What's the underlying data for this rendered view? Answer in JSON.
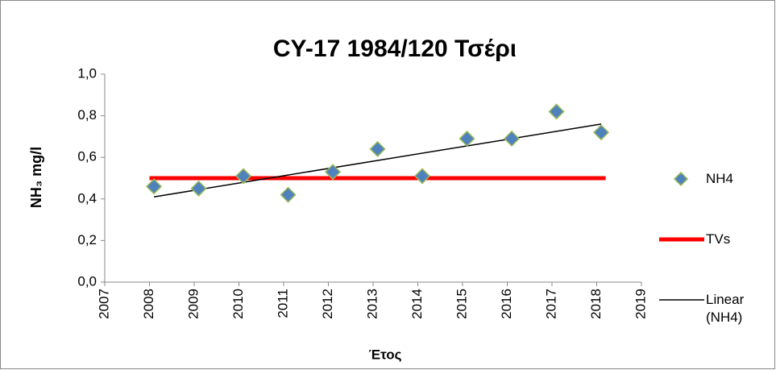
{
  "chart_data": {
    "type": "scatter",
    "title": "CY-17 1984/120 Τσέρι",
    "x_label": "Έτος",
    "y_label": "NH₃ mg/l",
    "xlim": [
      2007,
      2019
    ],
    "xticks": [
      2007,
      2008,
      2009,
      2010,
      2011,
      2012,
      2013,
      2014,
      2015,
      2016,
      2017,
      2018,
      2019
    ],
    "ylim": [
      0,
      1
    ],
    "yticks": [
      {
        "value": 0,
        "label": "0,0"
      },
      {
        "value": 0.2,
        "label": "0,2"
      },
      {
        "value": 0.4,
        "label": "0,4"
      },
      {
        "value": 0.6,
        "label": "0,6"
      },
      {
        "value": 0.8,
        "label": "0,8"
      },
      {
        "value": 1,
        "label": "1,0"
      }
    ],
    "grid": false,
    "legend": "right",
    "series": [
      {
        "name": "NH4",
        "mode": "markers",
        "color": "#4f81bd",
        "edge_color": "#9bbb59",
        "x": [
          2008.1,
          2009.1,
          2010.1,
          2011.1,
          2012.1,
          2013.1,
          2014.1,
          2015.1,
          2016.1,
          2017.1,
          2018.1
        ],
        "values": [
          0.46,
          0.45,
          0.51,
          0.42,
          0.53,
          0.64,
          0.51,
          0.69,
          0.69,
          0.82,
          0.72
        ]
      },
      {
        "name": "TVs",
        "mode": "line",
        "color": "#ff0000",
        "width": 5,
        "x": [
          2008,
          2018.2
        ],
        "values": [
          0.5,
          0.5
        ]
      },
      {
        "name": "Linear (NH4)",
        "mode": "line",
        "color": "#000000",
        "width": 1.5,
        "x": [
          2008.1,
          2018.1
        ],
        "values": [
          0.41,
          0.76
        ]
      }
    ]
  }
}
